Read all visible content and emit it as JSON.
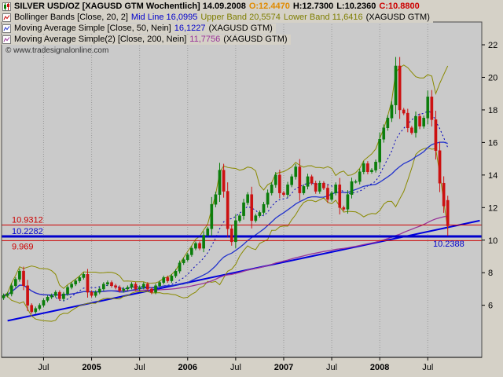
{
  "header": {
    "line1": {
      "title": "SILVER USD/OZ [XAGUSD GTM  Wochentlich] 14.09.2008",
      "open": "O:12.4470",
      "high": "H:12.7300",
      "low": "L:10.2360",
      "close": "C:10.8800"
    },
    "line2": {
      "name": "Bollinger Bands [Close, 20, 2]",
      "mid": "Mid Line 16,0995",
      "upper": "Upper Band 20,5574",
      "lower": "Lower Band 11,6416",
      "suffix": "(XAGUSD GTM)"
    },
    "line3": {
      "name": "Moving Average Simple [Close, 50, Nein]",
      "value": "16,1227",
      "suffix": "(XAGUSD GTM)"
    },
    "line4": {
      "name": "Moving Average Simple(2) [Close, 200, Nein]",
      "value": "11,7756",
      "suffix": "(XAGUSD GTM)"
    },
    "copyright": "© www.tradesignalonline.com"
  },
  "colors": {
    "app_bg": "#d5d1c7",
    "plot_bg": "#cacaca",
    "up": "#0b7d0b",
    "down": "#cc1111",
    "band": "#8a8a00",
    "mid": "#0000bb",
    "ma50": "#2233cc",
    "ma200": "#993399",
    "axis": "#000000",
    "grid": "#9b9b9b"
  },
  "x_axis": {
    "ticks": [
      {
        "label": "Jul",
        "slot": 10,
        "bold": false
      },
      {
        "label": "2005",
        "slot": 22,
        "bold": true
      },
      {
        "label": "Jul",
        "slot": 34,
        "bold": false
      },
      {
        "label": "2006",
        "slot": 46,
        "bold": true
      },
      {
        "label": "Jul",
        "slot": 58,
        "bold": false
      },
      {
        "label": "2007",
        "slot": 70,
        "bold": true
      },
      {
        "label": "Jul",
        "slot": 82,
        "bold": false
      },
      {
        "label": "2008",
        "slot": 94,
        "bold": true
      },
      {
        "label": "Jul",
        "slot": 106,
        "bold": false
      }
    ]
  },
  "y_axis": {
    "ticks": [
      22,
      20,
      18,
      16,
      14,
      12,
      10,
      8,
      6
    ]
  },
  "chart_data": {
    "type": "candlestick",
    "title": "SILVER USD/OZ",
    "symbol": "XAGUSD GTM",
    "timeframe": "Wochentlich",
    "as_of_date": "14.09.2008",
    "last_bar": {
      "open": 12.447,
      "high": 12.73,
      "low": 10.236,
      "close": 10.88
    },
    "x_range": [
      "Feb 2004",
      "Sep 2008"
    ],
    "ylim": [
      2.8,
      23.4
    ],
    "closes_biweekly": [
      6.6,
      6.7,
      7.2,
      7.6,
      8.1,
      7.2,
      6.0,
      5.6,
      5.8,
      6.0,
      6.3,
      6.5,
      6.6,
      6.8,
      6.4,
      6.7,
      7.1,
      7.3,
      7.5,
      7.7,
      7.9,
      6.8,
      6.6,
      6.8,
      7.0,
      7.3,
      7.4,
      7.2,
      7.1,
      6.9,
      7.0,
      7.1,
      7.3,
      7.0,
      7.1,
      7.3,
      7.0,
      6.8,
      7.2,
      7.4,
      7.7,
      7.5,
      7.8,
      8.1,
      8.6,
      8.8,
      9.1,
      9.5,
      9.8,
      9.5,
      10.3,
      10.7,
      12.2,
      12.8,
      14.3,
      13.0,
      10.7,
      9.9,
      11.2,
      11.5,
      12.3,
      12.8,
      11.2,
      11.5,
      11.7,
      12.2,
      12.9,
      13.4,
      14.0,
      12.9,
      12.8,
      13.4,
      13.9,
      14.5,
      12.9,
      13.3,
      13.9,
      13.5,
      13.0,
      13.5,
      13.2,
      12.5,
      12.9,
      13.4,
      12.0,
      11.9,
      12.8,
      13.6,
      13.6,
      14.2,
      14.7,
      14.2,
      14.3,
      14.8,
      16.2,
      16.9,
      17.5,
      18.3,
      20.7,
      18.0,
      17.8,
      16.9,
      16.6,
      17.6,
      17.0,
      17.5,
      18.8,
      17.4,
      15.5,
      13.5,
      12.1,
      10.88
    ],
    "indicators": {
      "bollinger": {
        "source": "Close",
        "period": 20,
        "deviation": 2,
        "mid": 16.0995,
        "upper": 20.5574,
        "lower": 11.6416
      },
      "sma50": {
        "source": "Close",
        "period": 50,
        "value": 16.1227
      },
      "sma200": {
        "source": "Close",
        "period": 200,
        "value": 11.7756
      }
    },
    "levels": [
      {
        "value": 10.9312,
        "label": "10.9312",
        "color": "#cc0000",
        "thick": false,
        "label_below": false
      },
      {
        "value": 10.2282,
        "label": "10.2282",
        "color": "#0000cc",
        "thick": true,
        "label_below": false
      },
      {
        "value": 9.969,
        "label": "9.969",
        "color": "#cc0000",
        "thick": false,
        "label_below": true
      }
    ],
    "price_marker": {
      "value": 10.2388,
      "label": "10.2388",
      "color": "#0000cc"
    },
    "trendline": {
      "x1_slot": 1,
      "price1": 5.05,
      "x2_slot": 119,
      "price2": 11.2,
      "color": "#0000dd"
    }
  }
}
